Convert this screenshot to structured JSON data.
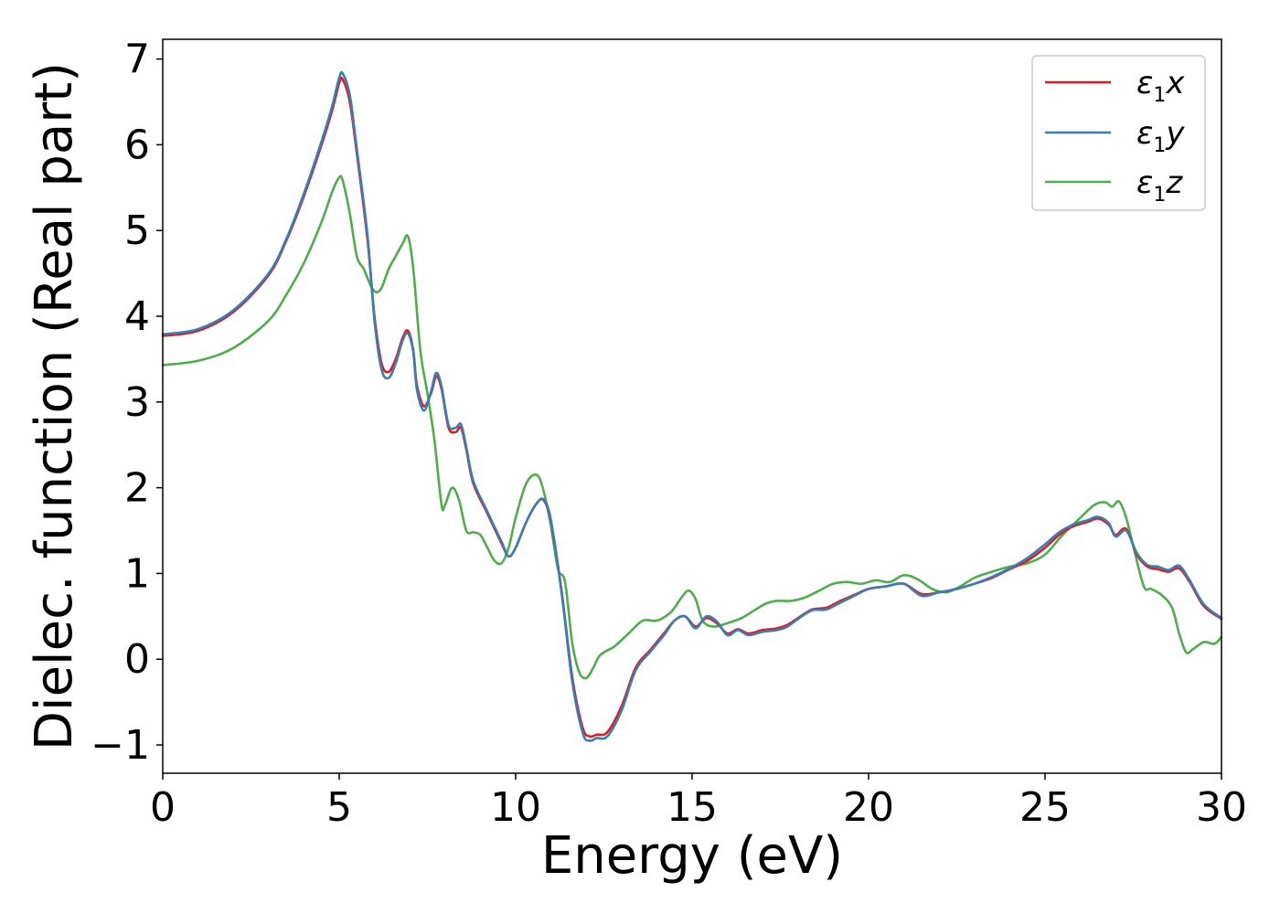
{
  "chart_data": {
    "type": "line",
    "xlabel": "Energy (eV)",
    "ylabel": "Dielec. function (Real part)",
    "xlim": [
      0,
      30
    ],
    "ylim": [
      -1.33,
      7.23
    ],
    "grid": false,
    "legend_position": "top-right",
    "x_ticks": [
      0,
      5,
      10,
      15,
      20,
      25,
      30
    ],
    "x_tick_labels": [
      "0",
      "5",
      "10",
      "15",
      "20",
      "25",
      "30"
    ],
    "y_ticks": [
      -1,
      0,
      1,
      2,
      3,
      4,
      5,
      6,
      7
    ],
    "y_tick_labels": [
      "−1",
      "0",
      "1",
      "2",
      "3",
      "4",
      "5",
      "6",
      "7"
    ],
    "series": [
      {
        "name": "ε₁x",
        "name_parts": {
          "base": "ε",
          "sub": "1",
          "comp": "x"
        },
        "color": "#e41a1c",
        "x": [
          0,
          1,
          2,
          3,
          3.5,
          4,
          4.5,
          4.8,
          5.0,
          5.1,
          5.3,
          5.5,
          5.8,
          6.0,
          6.2,
          6.4,
          6.6,
          6.8,
          6.95,
          7.1,
          7.2,
          7.4,
          7.6,
          7.75,
          7.9,
          8.1,
          8.3,
          8.45,
          8.6,
          8.8,
          9.2,
          9.6,
          9.8,
          10.0,
          10.3,
          10.6,
          10.8,
          11.0,
          11.3,
          11.6,
          11.9,
          12.1,
          12.3,
          12.6,
          13.0,
          13.4,
          13.8,
          14.2,
          14.5,
          14.8,
          15.1,
          15.4,
          15.7,
          16.0,
          16.3,
          16.6,
          17.0,
          17.4,
          17.7,
          18.0,
          18.4,
          18.8,
          19.2,
          19.6,
          20.0,
          20.5,
          21.0,
          21.5,
          22.0,
          22.5,
          23.0,
          23.5,
          24.0,
          24.5,
          25.0,
          25.4,
          25.8,
          26.2,
          26.5,
          26.8,
          27.0,
          27.3,
          27.6,
          27.9,
          28.2,
          28.5,
          28.8,
          29.1,
          29.5,
          30.0
        ],
        "values": [
          3.77,
          3.83,
          4.05,
          4.48,
          4.88,
          5.4,
          6.0,
          6.4,
          6.72,
          6.76,
          6.5,
          5.9,
          4.9,
          4.0,
          3.45,
          3.35,
          3.5,
          3.75,
          3.83,
          3.6,
          3.2,
          2.95,
          3.1,
          3.3,
          3.15,
          2.7,
          2.65,
          2.7,
          2.45,
          2.05,
          1.7,
          1.35,
          1.2,
          1.3,
          1.6,
          1.82,
          1.85,
          1.6,
          0.8,
          -0.2,
          -0.8,
          -0.9,
          -0.88,
          -0.85,
          -0.55,
          -0.1,
          0.1,
          0.3,
          0.45,
          0.5,
          0.38,
          0.48,
          0.42,
          0.3,
          0.35,
          0.3,
          0.34,
          0.36,
          0.4,
          0.48,
          0.58,
          0.6,
          0.68,
          0.75,
          0.82,
          0.85,
          0.88,
          0.76,
          0.78,
          0.82,
          0.88,
          0.95,
          1.05,
          1.15,
          1.3,
          1.45,
          1.55,
          1.6,
          1.64,
          1.57,
          1.45,
          1.52,
          1.22,
          1.08,
          1.05,
          1.02,
          1.06,
          0.9,
          0.62,
          0.47
        ]
      },
      {
        "name": "ε₁y",
        "name_parts": {
          "base": "ε",
          "sub": "1",
          "comp": "y"
        },
        "color": "#377eb8",
        "x": [
          0,
          1,
          2,
          3,
          3.5,
          4,
          4.5,
          4.8,
          5.0,
          5.1,
          5.3,
          5.5,
          5.8,
          6.0,
          6.2,
          6.4,
          6.6,
          6.8,
          6.95,
          7.1,
          7.2,
          7.4,
          7.6,
          7.75,
          7.9,
          8.1,
          8.3,
          8.45,
          8.6,
          8.8,
          9.2,
          9.6,
          9.8,
          10.0,
          10.3,
          10.6,
          10.8,
          11.0,
          11.3,
          11.6,
          11.9,
          12.1,
          12.3,
          12.6,
          13.0,
          13.4,
          13.8,
          14.2,
          14.5,
          14.8,
          15.1,
          15.4,
          15.7,
          16.0,
          16.3,
          16.6,
          17.0,
          17.4,
          17.7,
          18.0,
          18.4,
          18.8,
          19.2,
          19.6,
          20.0,
          20.5,
          21.0,
          21.5,
          22.0,
          22.5,
          23.0,
          23.5,
          24.0,
          24.5,
          25.0,
          25.4,
          25.8,
          26.2,
          26.5,
          26.8,
          27.0,
          27.3,
          27.6,
          27.9,
          28.2,
          28.5,
          28.8,
          29.1,
          29.5,
          30.0
        ],
        "values": [
          3.79,
          3.85,
          4.07,
          4.5,
          4.9,
          5.43,
          6.04,
          6.45,
          6.78,
          6.83,
          6.58,
          5.95,
          4.95,
          3.95,
          3.38,
          3.28,
          3.45,
          3.72,
          3.8,
          3.58,
          3.15,
          2.9,
          3.12,
          3.34,
          3.18,
          2.73,
          2.7,
          2.74,
          2.48,
          2.08,
          1.72,
          1.37,
          1.2,
          1.3,
          1.6,
          1.82,
          1.86,
          1.62,
          0.78,
          -0.25,
          -0.86,
          -0.95,
          -0.92,
          -0.9,
          -0.6,
          -0.13,
          0.08,
          0.28,
          0.45,
          0.5,
          0.36,
          0.5,
          0.44,
          0.28,
          0.34,
          0.28,
          0.32,
          0.34,
          0.38,
          0.47,
          0.57,
          0.58,
          0.66,
          0.74,
          0.82,
          0.85,
          0.88,
          0.74,
          0.78,
          0.82,
          0.88,
          0.96,
          1.06,
          1.18,
          1.34,
          1.48,
          1.57,
          1.62,
          1.66,
          1.59,
          1.43,
          1.5,
          1.24,
          1.1,
          1.08,
          1.04,
          1.09,
          0.92,
          0.64,
          0.48
        ]
      },
      {
        "name": "ε₁z",
        "name_parts": {
          "base": "ε",
          "sub": "1",
          "comp": "z"
        },
        "color": "#4daf4a",
        "x": [
          0,
          1,
          2,
          3,
          3.5,
          4,
          4.5,
          4.8,
          5.0,
          5.1,
          5.3,
          5.5,
          5.7,
          5.9,
          6.05,
          6.2,
          6.4,
          6.6,
          6.8,
          6.95,
          7.1,
          7.3,
          7.5,
          7.7,
          7.9,
          8.0,
          8.2,
          8.4,
          8.6,
          8.8,
          9.0,
          9.2,
          9.4,
          9.6,
          9.8,
          10.0,
          10.3,
          10.6,
          10.8,
          11.0,
          11.2,
          11.4,
          11.6,
          11.8,
          12.0,
          12.2,
          12.4,
          12.8,
          13.2,
          13.6,
          14.0,
          14.4,
          14.7,
          14.9,
          15.1,
          15.3,
          15.6,
          16.0,
          16.4,
          16.8,
          17.1,
          17.4,
          17.8,
          18.2,
          18.6,
          19.0,
          19.4,
          19.8,
          20.2,
          20.6,
          21.0,
          21.4,
          21.8,
          22.2,
          22.6,
          23.0,
          23.5,
          24.0,
          24.5,
          25.0,
          25.5,
          26.0,
          26.4,
          26.7,
          26.9,
          27.1,
          27.3,
          27.5,
          27.8,
          28.0,
          28.3,
          28.6,
          28.8,
          29.0,
          29.2,
          29.5,
          29.8,
          30.0
        ],
        "values": [
          3.43,
          3.48,
          3.63,
          3.95,
          4.25,
          4.62,
          5.1,
          5.45,
          5.62,
          5.58,
          5.2,
          4.7,
          4.55,
          4.35,
          4.28,
          4.33,
          4.55,
          4.7,
          4.85,
          4.93,
          4.55,
          3.6,
          3.1,
          2.55,
          1.8,
          1.8,
          2.0,
          1.85,
          1.5,
          1.48,
          1.45,
          1.3,
          1.15,
          1.12,
          1.3,
          1.65,
          2.05,
          2.15,
          1.95,
          1.55,
          1.05,
          0.9,
          0.2,
          -0.15,
          -0.22,
          -0.1,
          0.05,
          0.15,
          0.3,
          0.45,
          0.45,
          0.55,
          0.72,
          0.8,
          0.7,
          0.45,
          0.38,
          0.42,
          0.48,
          0.58,
          0.65,
          0.68,
          0.68,
          0.72,
          0.8,
          0.88,
          0.9,
          0.88,
          0.92,
          0.9,
          0.98,
          0.93,
          0.82,
          0.78,
          0.85,
          0.95,
          1.02,
          1.08,
          1.12,
          1.22,
          1.45,
          1.65,
          1.8,
          1.83,
          1.78,
          1.84,
          1.65,
          1.32,
          0.85,
          0.82,
          0.75,
          0.6,
          0.3,
          0.08,
          0.12,
          0.2,
          0.18,
          0.26
        ]
      }
    ]
  }
}
